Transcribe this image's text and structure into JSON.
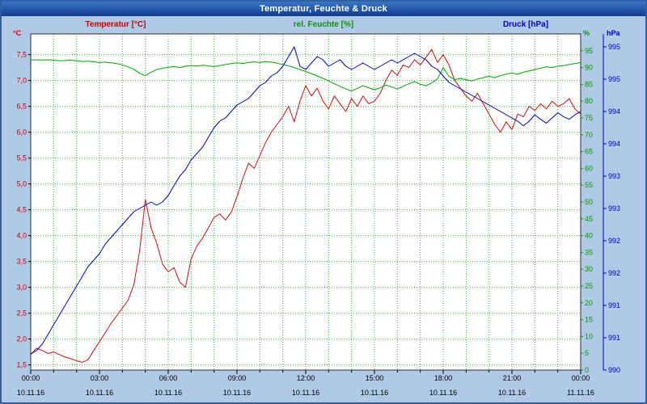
{
  "window": {
    "title": "Temperatur, Feuchte & Druck"
  },
  "colors": {
    "window_bg": "#b0c9e6",
    "titlebar_top": "#3a76c8",
    "titlebar_bottom": "#0f3c8a",
    "title_text": "#ffffff",
    "border": "#2f5f9e",
    "x_label_text": "#000000"
  },
  "chart_data": {
    "type": "line",
    "title": "Temperatur, Feuchte & Druck",
    "grid": true,
    "grid_color": "#3cb43c",
    "plot_bg": "#ffffff",
    "frame_color": "#303030",
    "x_axis": {
      "span_hours": 24,
      "minor_tick_hours": 1,
      "major_tick_hours": 3,
      "major_tick_labels": [
        "00:00",
        "03:00",
        "06:00",
        "09:00",
        "12:00",
        "15:00",
        "18:00",
        "21:00",
        "00:00"
      ],
      "date_labels": [
        "10.11.16",
        "10.11.16",
        "10.11.16",
        "10.11.16",
        "10.11.16",
        "10.11.16",
        "10.11.16",
        "10.11.16",
        "11.11.16"
      ]
    },
    "axes": {
      "temperature": {
        "title": "Temperatur [°C]",
        "unit": "°C",
        "color": "#cc0000",
        "min": 1.4,
        "max": 7.9,
        "tick_values": [
          1.5,
          2.0,
          2.5,
          3.0,
          3.5,
          4.0,
          4.5,
          5.0,
          5.5,
          6.0,
          6.5,
          7.0,
          7.5
        ],
        "tick_labels": [
          "1,5",
          "2,0",
          "2,5",
          "3,0",
          "3,5",
          "4,0",
          "4,5",
          "5,0",
          "5,5",
          "6,0",
          "6,5",
          "7,0",
          "7,5"
        ]
      },
      "humidity": {
        "title": "rel. Feuchte [%]",
        "unit": "%",
        "color": "#009a00",
        "min": 0,
        "max": 100,
        "tick_values": [
          0,
          5,
          10,
          15,
          20,
          25,
          30,
          35,
          40,
          45,
          50,
          55,
          60,
          65,
          70,
          75,
          80,
          85,
          90,
          95
        ],
        "tick_labels": [
          "0",
          "5",
          "10",
          "15",
          "20",
          "25",
          "30",
          "35",
          "40",
          "45",
          "50",
          "55",
          "60",
          "65",
          "70",
          "75",
          "80",
          "85",
          "90",
          "95"
        ]
      },
      "pressure": {
        "title": "Druck [hPa]",
        "unit": "hPa",
        "color": "#0000cc",
        "min": 990,
        "max": 995.2,
        "tick_values": [
          990,
          990.5,
          991,
          991.5,
          992,
          992.5,
          993,
          993.5,
          994,
          994.5,
          995
        ],
        "tick_labels": [
          "990",
          "991",
          "991",
          "992",
          "992",
          "993",
          "993",
          "994",
          "994",
          "995",
          "995"
        ]
      }
    },
    "sample_interval_hours": 0.25,
    "series": [
      {
        "name": "Temperatur",
        "axis": "temperature",
        "color": "#cc1111",
        "values": [
          1.7,
          1.82,
          1.78,
          1.72,
          1.75,
          1.7,
          1.65,
          1.62,
          1.58,
          1.55,
          1.6,
          1.78,
          1.95,
          2.12,
          2.3,
          2.45,
          2.6,
          2.75,
          3.05,
          3.7,
          4.7,
          4.15,
          3.85,
          3.45,
          3.3,
          3.38,
          3.1,
          3.0,
          3.55,
          3.8,
          3.95,
          4.15,
          4.35,
          4.42,
          4.3,
          4.45,
          4.75,
          5.1,
          5.4,
          5.3,
          5.55,
          5.8,
          6.0,
          6.15,
          6.3,
          6.5,
          6.2,
          6.6,
          6.9,
          6.7,
          6.85,
          6.6,
          6.45,
          6.7,
          6.55,
          6.4,
          6.65,
          6.5,
          6.7,
          6.55,
          6.6,
          6.75,
          7.0,
          7.2,
          7.1,
          7.3,
          7.25,
          7.4,
          7.3,
          7.45,
          7.6,
          7.35,
          7.5,
          7.3,
          7.0,
          6.85,
          6.7,
          6.6,
          6.75,
          6.55,
          6.35,
          6.15,
          6.0,
          6.2,
          6.05,
          6.35,
          6.3,
          6.5,
          6.42,
          6.55,
          6.45,
          6.6,
          6.5,
          6.55,
          6.65,
          6.45,
          6.35
        ]
      },
      {
        "name": "rel. Feuchte",
        "axis": "humidity",
        "color": "#00a800",
        "values": [
          92.2,
          92.3,
          92.2,
          92.3,
          92.2,
          92.0,
          92.1,
          92.2,
          92.0,
          91.8,
          91.9,
          91.7,
          91.5,
          91.6,
          91.4,
          91.2,
          90.8,
          90.2,
          89.5,
          88.3,
          87.6,
          88.6,
          89.4,
          89.8,
          90.1,
          90.3,
          90.0,
          90.4,
          90.6,
          90.4,
          90.7,
          90.5,
          90.3,
          90.6,
          90.9,
          91.2,
          91.4,
          91.2,
          91.5,
          91.7,
          91.5,
          91.8,
          91.6,
          91.3,
          90.9,
          90.5,
          90.0,
          89.4,
          88.8,
          88.2,
          87.5,
          86.8,
          86.0,
          85.2,
          84.4,
          83.6,
          83.0,
          83.8,
          84.6,
          84.0,
          83.4,
          84.0,
          84.8,
          84.2,
          83.6,
          84.4,
          85.2,
          85.8,
          85.0,
          84.6,
          85.4,
          86.6,
          90.0,
          87.4,
          86.4,
          86.8,
          86.4,
          86.0,
          86.6,
          87.0,
          87.4,
          87.0,
          87.6,
          88.0,
          88.4,
          88.0,
          88.6,
          89.0,
          89.4,
          89.8,
          90.2,
          90.0,
          90.4,
          90.6,
          90.9,
          91.2,
          91.5
        ]
      },
      {
        "name": "Druck",
        "axis": "pressure",
        "color": "#0000bb",
        "values": [
          990.25,
          990.3,
          990.4,
          990.55,
          990.7,
          990.85,
          991.0,
          991.15,
          991.3,
          991.45,
          991.6,
          991.7,
          991.8,
          991.95,
          992.05,
          992.15,
          992.25,
          992.35,
          992.45,
          992.5,
          992.55,
          992.6,
          992.55,
          992.6,
          992.7,
          992.85,
          993.0,
          993.1,
          993.25,
          993.35,
          993.45,
          993.6,
          993.75,
          993.85,
          993.9,
          994.0,
          994.1,
          994.15,
          994.2,
          994.3,
          994.4,
          994.45,
          994.55,
          994.6,
          994.7,
          994.85,
          995.0,
          994.7,
          994.65,
          994.75,
          994.85,
          994.8,
          994.7,
          994.75,
          994.8,
          994.7,
          994.65,
          994.7,
          994.75,
          994.7,
          994.65,
          994.7,
          994.75,
          994.8,
          994.75,
          994.8,
          994.85,
          994.9,
          994.85,
          994.8,
          994.7,
          994.65,
          994.55,
          994.45,
          994.4,
          994.35,
          994.3,
          994.25,
          994.2,
          994.15,
          994.1,
          994.05,
          994.0,
          993.95,
          993.9,
          993.85,
          993.78,
          993.85,
          993.95,
          993.88,
          993.82,
          993.9,
          993.98,
          993.92,
          993.88,
          993.95,
          994.0
        ]
      }
    ]
  }
}
